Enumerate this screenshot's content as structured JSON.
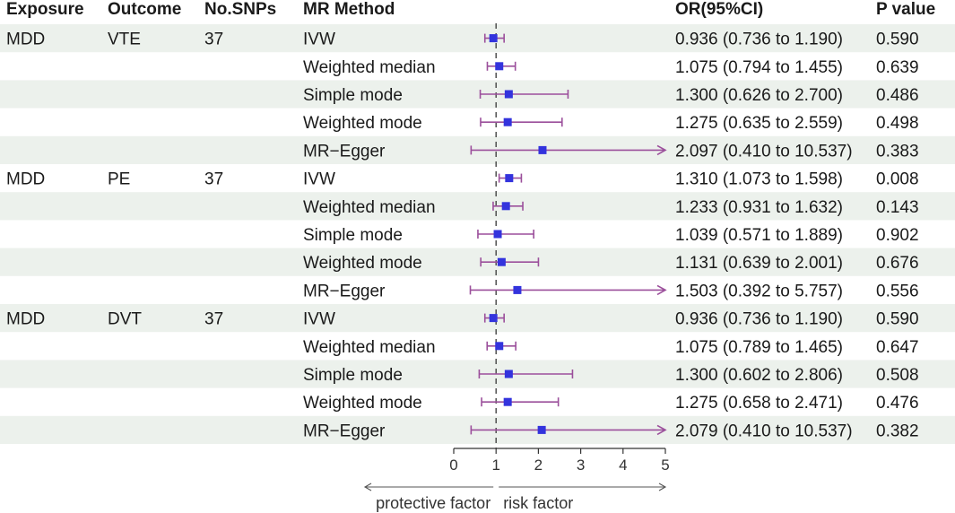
{
  "chart_data": {
    "type": "forest",
    "headers": {
      "exposure": "Exposure",
      "outcome": "Outcome",
      "nsnps": "No.SNPs",
      "method": "MR Method",
      "or": "OR(95%CI)",
      "p": "P value"
    },
    "rows": [
      {
        "exposure": "MDD",
        "outcome": "VTE",
        "nsnps": "37",
        "method": "IVW",
        "or": 0.936,
        "lo": 0.736,
        "hi": 1.19,
        "or_text": "0.936 (0.736 to 1.190)",
        "p": "0.590"
      },
      {
        "exposure": "",
        "outcome": "",
        "nsnps": "",
        "method": "Weighted median",
        "or": 1.075,
        "lo": 0.794,
        "hi": 1.455,
        "or_text": "1.075 (0.794 to 1.455)",
        "p": "0.639"
      },
      {
        "exposure": "",
        "outcome": "",
        "nsnps": "",
        "method": "Simple mode",
        "or": 1.3,
        "lo": 0.626,
        "hi": 2.7,
        "or_text": "1.300 (0.626 to 2.700)",
        "p": "0.486"
      },
      {
        "exposure": "",
        "outcome": "",
        "nsnps": "",
        "method": "Weighted mode",
        "or": 1.275,
        "lo": 0.635,
        "hi": 2.559,
        "or_text": "1.275 (0.635 to 2.559)",
        "p": "0.498"
      },
      {
        "exposure": "",
        "outcome": "",
        "nsnps": "",
        "method": "MR−Egger",
        "or": 2.097,
        "lo": 0.41,
        "hi": 10.537,
        "or_text": "2.097 (0.410 to 10.537)",
        "p": "0.383"
      },
      {
        "exposure": "MDD",
        "outcome": "PE",
        "nsnps": "37",
        "method": "IVW",
        "or": 1.31,
        "lo": 1.073,
        "hi": 1.598,
        "or_text": "1.310 (1.073 to 1.598)",
        "p": "0.008"
      },
      {
        "exposure": "",
        "outcome": "",
        "nsnps": "",
        "method": "Weighted median",
        "or": 1.233,
        "lo": 0.931,
        "hi": 1.632,
        "or_text": "1.233 (0.931 to 1.632)",
        "p": "0.143"
      },
      {
        "exposure": "",
        "outcome": "",
        "nsnps": "",
        "method": "Simple mode",
        "or": 1.039,
        "lo": 0.571,
        "hi": 1.889,
        "or_text": "1.039 (0.571 to 1.889)",
        "p": "0.902"
      },
      {
        "exposure": "",
        "outcome": "",
        "nsnps": "",
        "method": "Weighted mode",
        "or": 1.131,
        "lo": 0.639,
        "hi": 2.001,
        "or_text": "1.131 (0.639 to 2.001)",
        "p": "0.676"
      },
      {
        "exposure": "",
        "outcome": "",
        "nsnps": "",
        "method": "MR−Egger",
        "or": 1.503,
        "lo": 0.392,
        "hi": 5.757,
        "or_text": "1.503 (0.392 to 5.757)",
        "p": "0.556"
      },
      {
        "exposure": "MDD",
        "outcome": "DVT",
        "nsnps": "37",
        "method": "IVW",
        "or": 0.936,
        "lo": 0.736,
        "hi": 1.19,
        "or_text": "0.936 (0.736 to 1.190)",
        "p": "0.590"
      },
      {
        "exposure": "",
        "outcome": "",
        "nsnps": "",
        "method": "Weighted median",
        "or": 1.075,
        "lo": 0.789,
        "hi": 1.465,
        "or_text": "1.075 (0.789 to 1.465)",
        "p": "0.647"
      },
      {
        "exposure": "",
        "outcome": "",
        "nsnps": "",
        "method": "Simple mode",
        "or": 1.3,
        "lo": 0.602,
        "hi": 2.806,
        "or_text": "1.300 (0.602 to 2.806)",
        "p": "0.508"
      },
      {
        "exposure": "",
        "outcome": "",
        "nsnps": "",
        "method": "Weighted mode",
        "or": 1.275,
        "lo": 0.658,
        "hi": 2.471,
        "or_text": "1.275 (0.658 to 2.471)",
        "p": "0.476"
      },
      {
        "exposure": "",
        "outcome": "",
        "nsnps": "",
        "method": "MR−Egger",
        "or": 2.079,
        "lo": 0.41,
        "hi": 10.537,
        "or_text": "2.079 (0.410 to 10.537)",
        "p": "0.382"
      }
    ],
    "xlim": [
      0,
      5
    ],
    "xticks": [
      0,
      1,
      2,
      3,
      4,
      5
    ],
    "reference_line": 1,
    "direction_labels": {
      "left": "protective factor",
      "right": "risk factor"
    },
    "colors": {
      "ci": "#9b4f9b",
      "point": "#3333dd",
      "stripe": "#ecf1ec",
      "reference": "#444444"
    }
  }
}
